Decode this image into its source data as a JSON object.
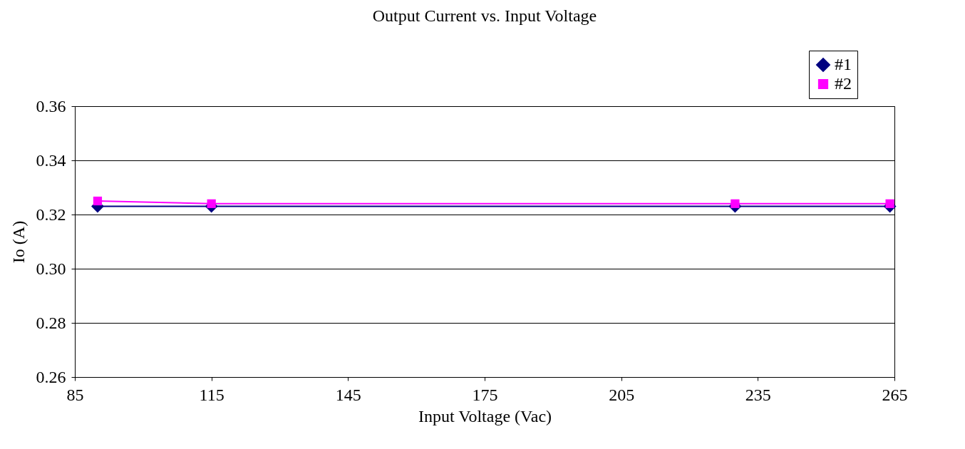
{
  "chart_data": {
    "type": "line",
    "title": "Output Current vs. Input Voltage",
    "xlabel": "Input Voltage (Vac)",
    "ylabel": "Io (A)",
    "x": [
      90,
      115,
      230,
      264
    ],
    "series": [
      {
        "name": "#1",
        "color": "#000080",
        "marker": "diamond",
        "values": [
          0.323,
          0.323,
          0.323,
          0.323
        ]
      },
      {
        "name": "#2",
        "color": "#ff00ff",
        "marker": "square",
        "values": [
          0.325,
          0.324,
          0.324,
          0.324
        ]
      }
    ],
    "xlim": [
      85,
      265
    ],
    "xticks": [
      85,
      115,
      145,
      175,
      205,
      235,
      265
    ],
    "ylim": [
      0.26,
      0.36
    ],
    "yticks": [
      {
        "value": 0.26,
        "label": "0.26"
      },
      {
        "value": 0.28,
        "label": "0.28"
      },
      {
        "value": 0.3,
        "label": "0.30"
      },
      {
        "value": 0.32,
        "label": "0.32"
      },
      {
        "value": 0.34,
        "label": "0.34"
      },
      {
        "value": 0.36,
        "label": "0.36"
      }
    ],
    "grid": "y",
    "legend": "top right"
  }
}
